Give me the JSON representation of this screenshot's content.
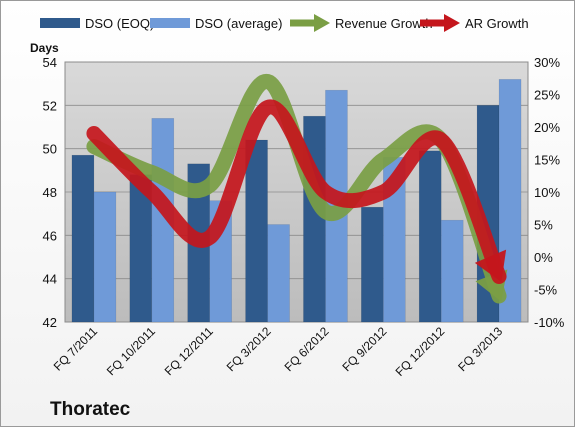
{
  "chart_data": {
    "type": "bar",
    "company": "Thoratec",
    "left_axis_title": "Days",
    "categories": [
      "FQ 7/2011",
      "FQ 10/2011",
      "FQ 12/2011",
      "FQ 3/2012",
      "FQ 6/2012",
      "FQ 9/2012",
      "FQ 12/2012",
      "FQ 3/2013"
    ],
    "left_ylim": [
      42,
      54
    ],
    "left_ticks": [
      42,
      44,
      46,
      48,
      50,
      52,
      54
    ],
    "right_ylim": [
      -10,
      30
    ],
    "right_ticks": [
      "-10%",
      "-5%",
      "0%",
      "5%",
      "10%",
      "15%",
      "20%",
      "25%",
      "30%"
    ],
    "right_tick_values": [
      -10,
      -5,
      0,
      5,
      10,
      15,
      20,
      25,
      30
    ],
    "legend_position": "top",
    "series": [
      {
        "name": "DSO (EOQ)",
        "kind": "bar",
        "axis": "left",
        "color": "#2f5a8c",
        "values": [
          49.7,
          48.8,
          49.3,
          50.4,
          51.5,
          47.3,
          49.9,
          52.0
        ]
      },
      {
        "name": "DSO (average)",
        "kind": "bar",
        "axis": "left",
        "color": "#6f9ad8",
        "values": [
          48.0,
          51.4,
          47.6,
          46.5,
          52.7,
          49.6,
          46.7,
          53.2
        ]
      },
      {
        "name": "Revenue Growth",
        "kind": "arrow-line",
        "axis": "right",
        "color": "#7a9e44",
        "values": [
          17,
          13,
          11,
          27,
          7,
          15,
          18,
          -6
        ]
      },
      {
        "name": "AR Growth",
        "kind": "arrow-line",
        "axis": "right",
        "color": "#c4161c",
        "values": [
          19,
          10,
          3,
          23,
          10,
          10,
          18,
          -3
        ]
      }
    ]
  }
}
